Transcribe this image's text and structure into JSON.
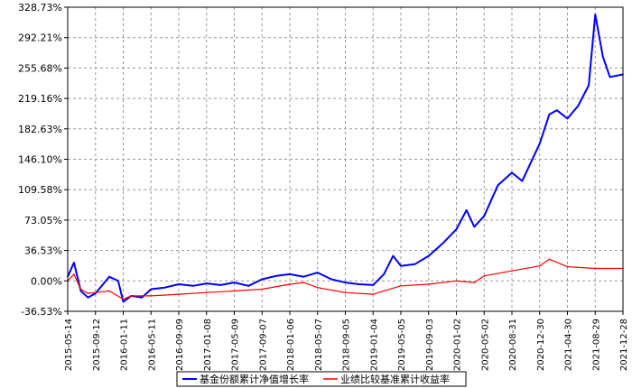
{
  "chart_data": {
    "type": "line",
    "title": "",
    "xlabel": "",
    "ylabel": "",
    "ylim": [
      -36.53,
      328.73
    ],
    "y_tick_labels": [
      "328.73%",
      "292.21%",
      "255.68%",
      "219.16%",
      "182.63%",
      "146.10%",
      "109.58%",
      "73.05%",
      "36.53%",
      "0.00%",
      "-36.53%"
    ],
    "y_ticks": [
      328.73,
      292.21,
      255.68,
      219.16,
      182.63,
      146.1,
      109.58,
      73.05,
      36.53,
      0.0,
      -36.53
    ],
    "x_tick_labels": [
      "2015-05-14",
      "2015-09-12",
      "2016-01-11",
      "2016-05-11",
      "2016-09-09",
      "2017-01-08",
      "2017-05-09",
      "2017-09-07",
      "2018-01-06",
      "2018-05-07",
      "2018-09-05",
      "2019-01-04",
      "2019-05-05",
      "2019-09-03",
      "2020-01-02",
      "2020-05-02",
      "2020-08-31",
      "2020-12-30",
      "2021-04-30",
      "2021-08-29",
      "2021-12-28"
    ],
    "grid": true,
    "legend_position": "bottom",
    "series": [
      {
        "name": "基金份额累计净值增长率",
        "color": "#0000ff",
        "x": [
          "2015-05-14",
          "2015-06-10",
          "2015-07-10",
          "2015-08-10",
          "2015-09-12",
          "2015-11-11",
          "2015-12-20",
          "2016-01-11",
          "2016-02-15",
          "2016-04-01",
          "2016-05-11",
          "2016-07-10",
          "2016-09-09",
          "2016-11-10",
          "2017-01-08",
          "2017-03-10",
          "2017-05-09",
          "2017-07-10",
          "2017-09-07",
          "2017-11-07",
          "2018-01-06",
          "2018-03-07",
          "2018-05-07",
          "2018-07-06",
          "2018-09-05",
          "2018-11-04",
          "2019-01-04",
          "2019-02-20",
          "2019-04-01",
          "2019-05-05",
          "2019-07-05",
          "2019-09-03",
          "2019-11-03",
          "2020-01-02",
          "2020-02-15",
          "2020-03-20",
          "2020-05-02",
          "2020-07-01",
          "2020-08-31",
          "2020-10-15",
          "2020-12-30",
          "2021-02-10",
          "2021-03-15",
          "2021-04-30",
          "2021-06-15",
          "2021-08-01",
          "2021-08-29",
          "2021-10-01",
          "2021-11-01",
          "2021-12-28"
        ],
        "values": [
          5,
          22,
          -12,
          -20,
          -15,
          5,
          0,
          -25,
          -18,
          -20,
          -10,
          -8,
          -4,
          -6,
          -3,
          -5,
          -2,
          -6,
          2,
          6,
          8,
          5,
          10,
          2,
          -2,
          -4,
          -5,
          8,
          30,
          18,
          20,
          30,
          45,
          62,
          85,
          65,
          78,
          115,
          130,
          120,
          165,
          200,
          205,
          195,
          210,
          235,
          320,
          270,
          245,
          248
        ]
      },
      {
        "name": "业绩比较基准累计收益率",
        "color": "#ff0000",
        "x": [
          "2015-05-14",
          "2015-06-10",
          "2015-07-10",
          "2015-08-10",
          "2015-09-12",
          "2015-11-11",
          "2016-01-11",
          "2016-02-15",
          "2016-05-11",
          "2016-09-09",
          "2017-01-08",
          "2017-05-09",
          "2017-09-07",
          "2018-01-06",
          "2018-03-07",
          "2018-05-07",
          "2018-09-05",
          "2019-01-04",
          "2019-02-20",
          "2019-05-05",
          "2019-09-03",
          "2020-01-02",
          "2020-03-20",
          "2020-05-02",
          "2020-08-31",
          "2020-12-30",
          "2021-02-10",
          "2021-04-30",
          "2021-08-29",
          "2021-12-28"
        ],
        "values": [
          0,
          8,
          -10,
          -15,
          -14,
          -12,
          -22,
          -18,
          -18,
          -16,
          -14,
          -12,
          -10,
          -4,
          -2,
          -8,
          -14,
          -16,
          -12,
          -6,
          -4,
          0,
          -2,
          6,
          12,
          18,
          26,
          17,
          15,
          15
        ]
      }
    ]
  }
}
